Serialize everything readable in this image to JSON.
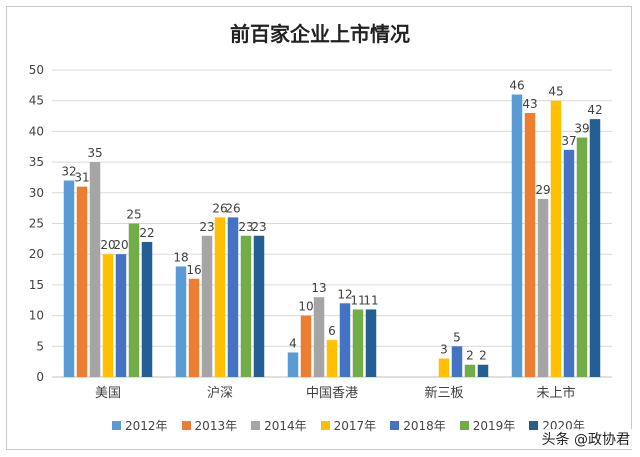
{
  "chart_data": {
    "type": "bar",
    "title": "前百家企业上市情况",
    "categories": [
      "美国",
      "沪深",
      "中国香港",
      "新三板",
      "未上市"
    ],
    "series": [
      {
        "name": "2012年",
        "color": "#5b9bd5",
        "values": [
          32,
          18,
          4,
          null,
          46
        ]
      },
      {
        "name": "2013年",
        "color": "#ed7d31",
        "values": [
          31,
          16,
          10,
          null,
          43
        ]
      },
      {
        "name": "2014年",
        "color": "#a5a5a5",
        "values": [
          35,
          23,
          13,
          null,
          29
        ]
      },
      {
        "name": "2017年",
        "color": "#ffc000",
        "values": [
          20,
          26,
          6,
          3,
          45
        ]
      },
      {
        "name": "2018年",
        "color": "#4472c4",
        "values": [
          20,
          26,
          12,
          5,
          37
        ]
      },
      {
        "name": "2019年",
        "color": "#70ad47",
        "values": [
          25,
          23,
          11,
          2,
          39
        ]
      },
      {
        "name": "2020年",
        "color": "#255e91",
        "values": [
          22,
          23,
          11,
          2,
          42
        ]
      }
    ],
    "ylim": [
      0,
      50
    ],
    "yticks": [
      0,
      5,
      10,
      15,
      20,
      25,
      30,
      35,
      40,
      45,
      50
    ],
    "grid": true,
    "legend": "bottom"
  },
  "watermark": "头条 @政协君"
}
